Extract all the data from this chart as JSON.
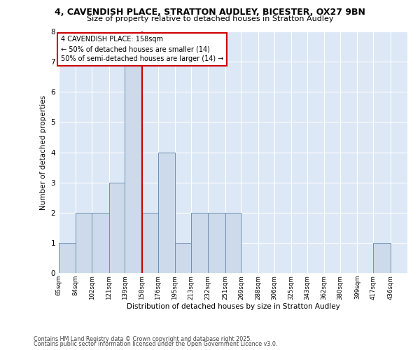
{
  "title_line1": "4, CAVENDISH PLACE, STRATTON AUDLEY, BICESTER, OX27 9BN",
  "title_line2": "Size of property relative to detached houses in Stratton Audley",
  "xlabel": "Distribution of detached houses by size in Stratton Audley",
  "ylabel": "Number of detached properties",
  "footer_line1": "Contains HM Land Registry data © Crown copyright and database right 2025.",
  "footer_line2": "Contains public sector information licensed under the Open Government Licence v3.0.",
  "property_size": 158,
  "annotation_title": "4 CAVENDISH PLACE: 158sqm",
  "annotation_line1": "← 50% of detached houses are smaller (14)",
  "annotation_line2": "50% of semi-detached houses are larger (14) →",
  "bin_labels": [
    "65sqm",
    "84sqm",
    "102sqm",
    "121sqm",
    "139sqm",
    "158sqm",
    "176sqm",
    "195sqm",
    "213sqm",
    "232sqm",
    "251sqm",
    "269sqm",
    "288sqm",
    "306sqm",
    "325sqm",
    "343sqm",
    "362sqm",
    "380sqm",
    "399sqm",
    "417sqm",
    "436sqm"
  ],
  "bin_edges": [
    65,
    84,
    102,
    121,
    139,
    158,
    176,
    195,
    213,
    232,
    251,
    269,
    288,
    306,
    325,
    343,
    362,
    380,
    399,
    417,
    436
  ],
  "bar_heights": [
    1,
    2,
    2,
    3,
    7,
    2,
    4,
    1,
    2,
    2,
    2,
    0,
    0,
    0,
    0,
    0,
    0,
    0,
    0,
    1,
    0
  ],
  "bar_color": "#cddaeb",
  "bar_edge_color": "#7090b0",
  "red_line_x": 158,
  "red_line_color": "#cc0000",
  "background_color": "#dce8f5",
  "ylim": [
    0,
    8
  ],
  "yticks": [
    0,
    1,
    2,
    3,
    4,
    5,
    6,
    7,
    8
  ]
}
